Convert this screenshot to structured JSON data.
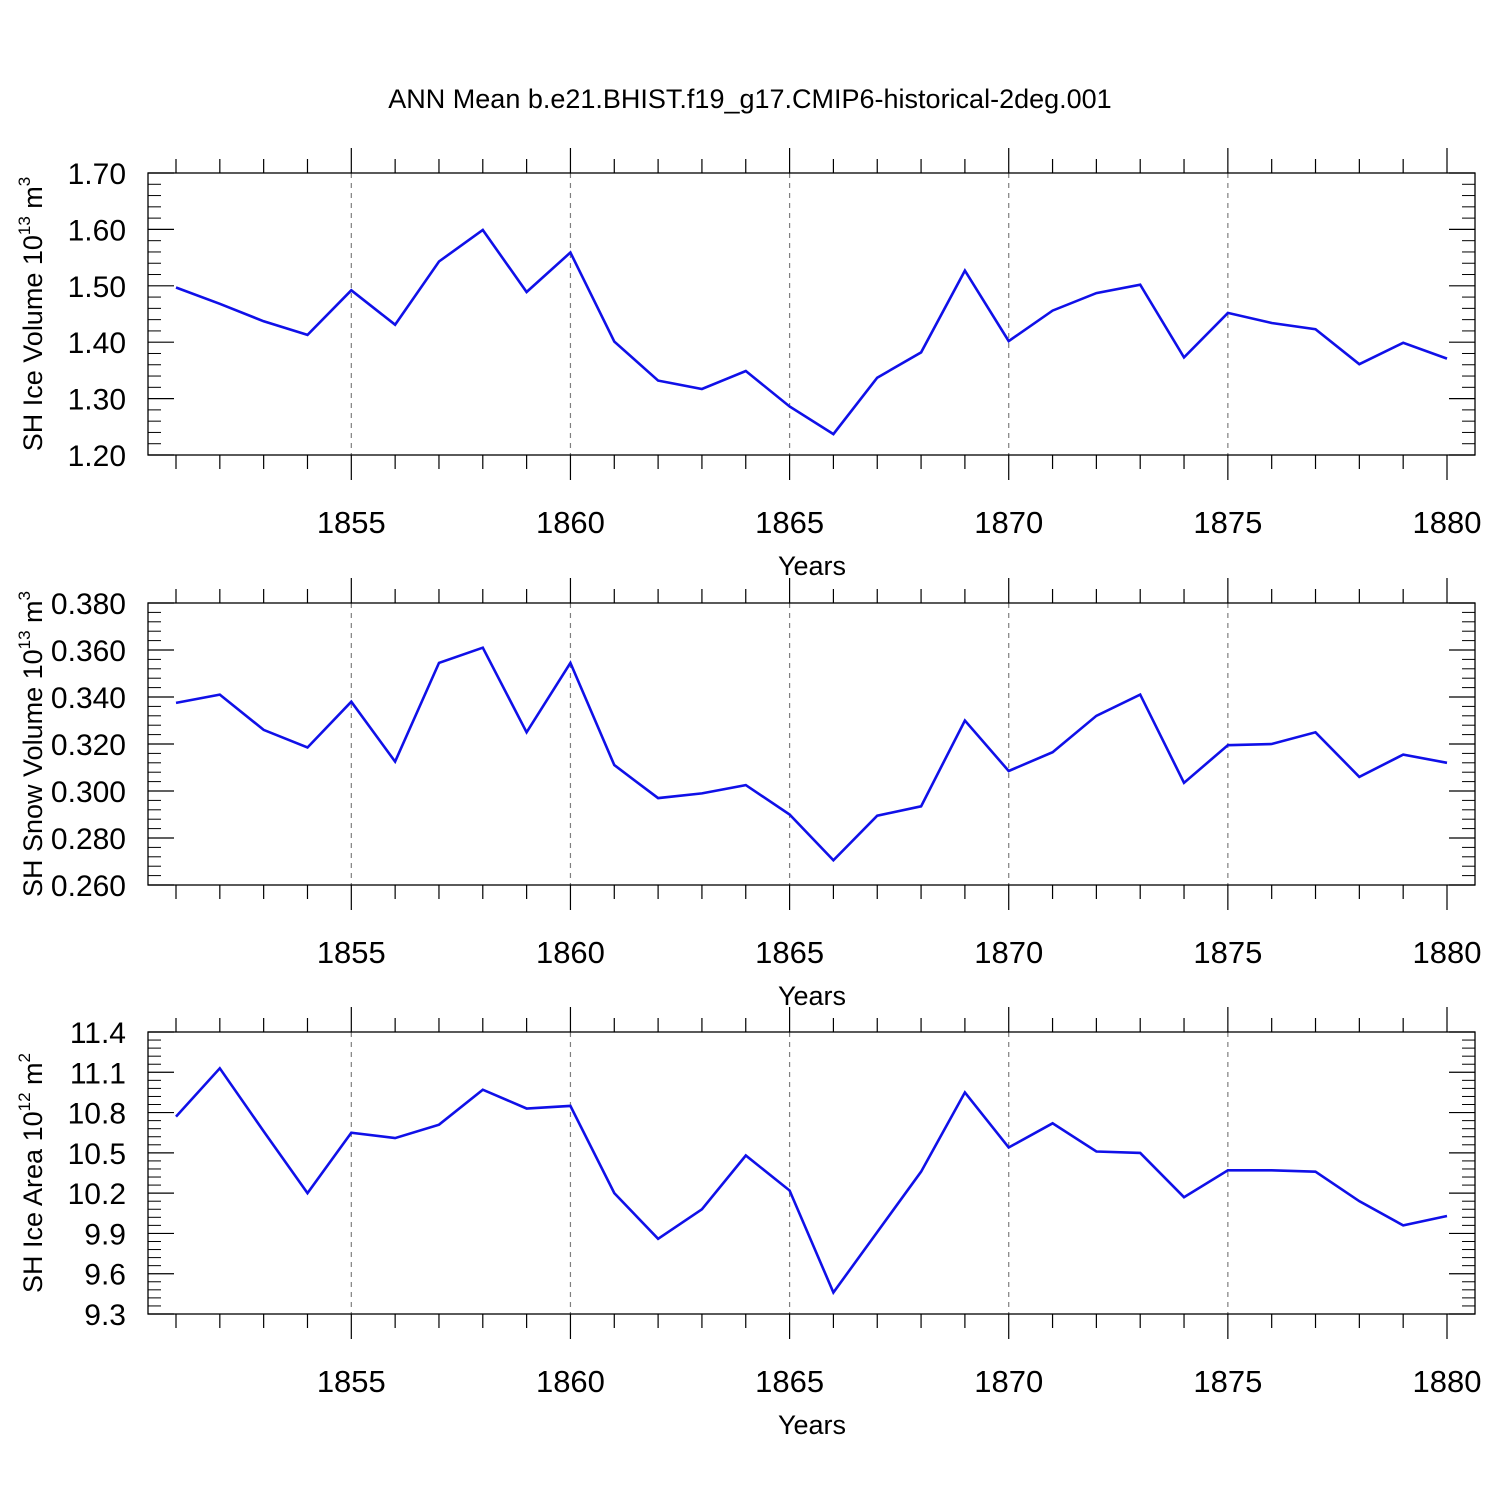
{
  "title": "ANN Mean b.e21.BHIST.f19_g17.CMIP6-historical-2deg.001",
  "colors": {
    "line": "#1010e8",
    "axis": "#000000",
    "grid": "#7f7f7f"
  },
  "chart_data": [
    {
      "type": "line",
      "ylabel": "SH Ice Volume 10",
      "ylabel_sup": "13",
      "ylabel_unit": "m",
      "ylabel_unit_sup": "3",
      "xlabel": "Years",
      "xlim": [
        1851,
        1880
      ],
      "ylim": [
        1.2,
        1.7
      ],
      "y_ticks": [
        "1.20",
        "1.30",
        "1.40",
        "1.50",
        "1.60",
        "1.70"
      ],
      "x_ticks": [
        "1855",
        "1860",
        "1865",
        "1870",
        "1875",
        "1880"
      ],
      "grid": "dashed vertical at labelled years",
      "series": [
        {
          "x": [
            1851,
            1852,
            1853,
            1854,
            1855,
            1856,
            1857,
            1858,
            1859,
            1860,
            1861,
            1862,
            1863,
            1864,
            1865,
            1866,
            1867,
            1868,
            1869,
            1870,
            1871,
            1872,
            1873,
            1874,
            1875,
            1876,
            1877,
            1878,
            1879,
            1880
          ],
          "values": [
            1.497,
            1.468,
            1.437,
            1.413,
            1.492,
            1.431,
            1.543,
            1.599,
            1.489,
            1.559,
            1.401,
            1.332,
            1.317,
            1.349,
            1.286,
            1.237,
            1.337,
            1.382,
            1.527,
            1.402,
            1.456,
            1.487,
            1.502,
            1.373,
            1.452,
            1.434,
            1.423,
            1.361,
            1.399,
            1.371
          ]
        }
      ]
    },
    {
      "type": "line",
      "ylabel": "SH Snow Volume 10",
      "ylabel_sup": "13",
      "ylabel_unit": "m",
      "ylabel_unit_sup": "3",
      "xlabel": "Years",
      "xlim": [
        1851,
        1880
      ],
      "ylim": [
        0.26,
        0.38
      ],
      "y_ticks": [
        "0.260",
        "0.280",
        "0.300",
        "0.320",
        "0.340",
        "0.360",
        "0.380"
      ],
      "x_ticks": [
        "1855",
        "1860",
        "1865",
        "1870",
        "1875",
        "1880"
      ],
      "grid": "dashed vertical at labelled years",
      "series": [
        {
          "x": [
            1851,
            1852,
            1853,
            1854,
            1855,
            1856,
            1857,
            1858,
            1859,
            1860,
            1861,
            1862,
            1863,
            1864,
            1865,
            1866,
            1867,
            1868,
            1869,
            1870,
            1871,
            1872,
            1873,
            1874,
            1875,
            1876,
            1877,
            1878,
            1879,
            1880
          ],
          "values": [
            0.3375,
            0.341,
            0.326,
            0.3185,
            0.338,
            0.3125,
            0.3545,
            0.361,
            0.325,
            0.3545,
            0.311,
            0.297,
            0.299,
            0.3025,
            0.29,
            0.2705,
            0.2895,
            0.2935,
            0.33,
            0.3085,
            0.3165,
            0.332,
            0.341,
            0.3035,
            0.3195,
            0.32,
            0.325,
            0.306,
            0.3155,
            0.312
          ]
        }
      ]
    },
    {
      "type": "line",
      "ylabel": "SH Ice Area 10",
      "ylabel_sup": "12",
      "ylabel_unit": "m",
      "ylabel_unit_sup": "2",
      "xlabel": "Years",
      "xlim": [
        1851,
        1880
      ],
      "ylim": [
        9.3,
        11.4
      ],
      "y_ticks": [
        "9.3",
        "9.6",
        "9.9",
        "10.2",
        "10.5",
        "10.8",
        "11.1",
        "11.4"
      ],
      "x_ticks": [
        "1855",
        "1860",
        "1865",
        "1870",
        "1875",
        "1880"
      ],
      "grid": "dashed vertical at labelled years",
      "series": [
        {
          "x": [
            1851,
            1852,
            1853,
            1854,
            1855,
            1856,
            1857,
            1858,
            1859,
            1860,
            1861,
            1862,
            1863,
            1864,
            1865,
            1866,
            1867,
            1868,
            1869,
            1870,
            1871,
            1872,
            1873,
            1874,
            1875,
            1876,
            1877,
            1878,
            1879,
            1880
          ],
          "values": [
            10.77,
            11.13,
            10.66,
            10.2,
            10.65,
            10.61,
            10.71,
            10.97,
            10.83,
            10.85,
            10.2,
            9.86,
            10.08,
            10.48,
            10.22,
            9.46,
            9.91,
            10.36,
            10.95,
            10.54,
            10.72,
            10.51,
            10.5,
            10.17,
            10.37,
            10.37,
            10.36,
            10.14,
            9.96,
            10.03
          ]
        }
      ]
    }
  ]
}
